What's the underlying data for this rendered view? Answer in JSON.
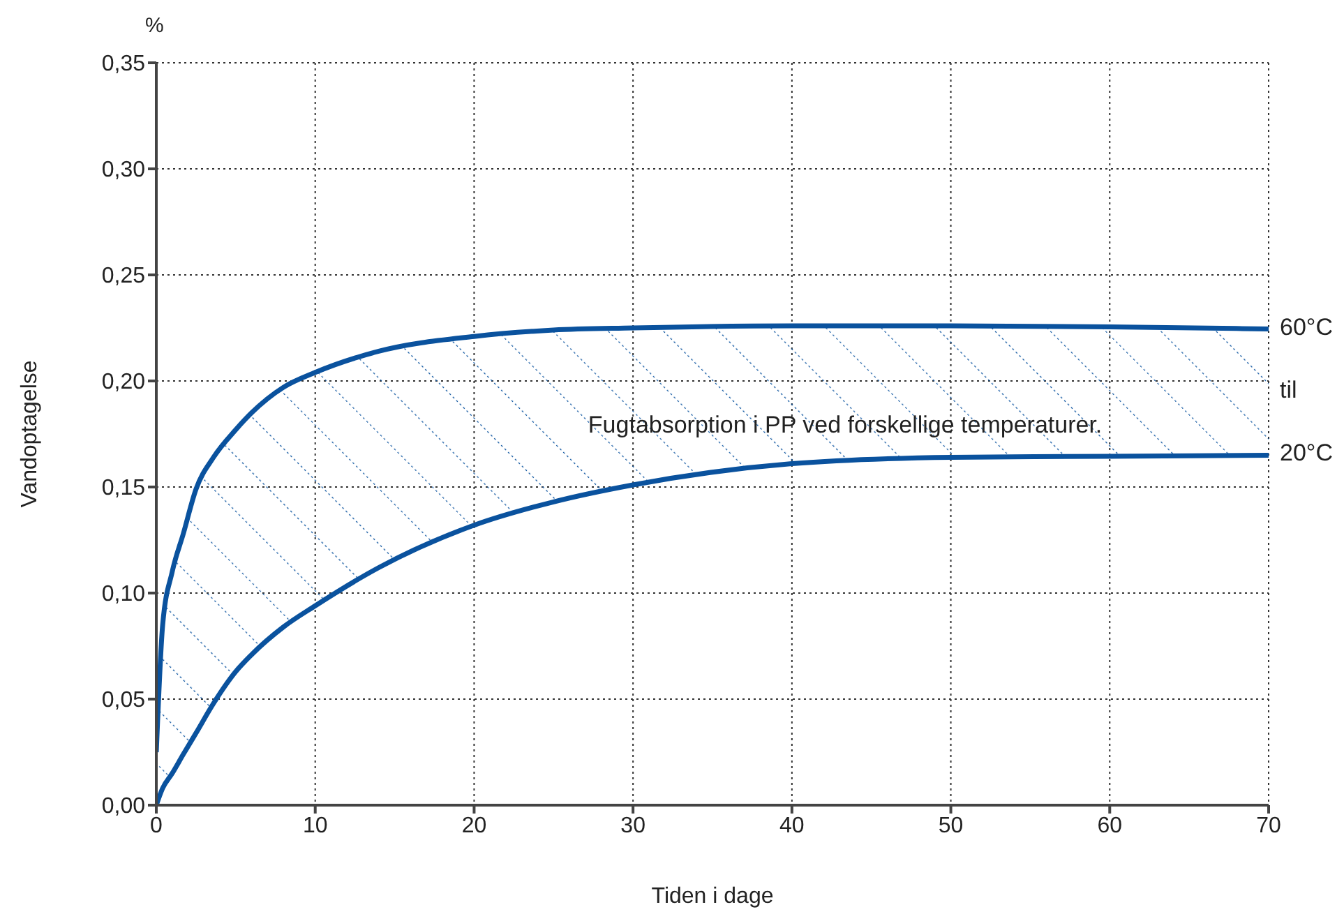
{
  "chart_data": {
    "type": "line",
    "xlabel": "Tiden i dage",
    "ylabel": "Vandoptagelse",
    "annotations": [
      "%",
      "Fugtabsorption i PP ved forskellige temperaturer.",
      "til"
    ],
    "x": [
      0,
      0.4,
      1,
      1.7,
      2.5,
      3.6,
      5,
      6,
      8,
      10,
      14,
      20,
      25,
      30,
      40,
      50,
      60,
      70
    ],
    "series": [
      {
        "name": "60°C",
        "color": "#0a529e",
        "values": [
          0.025,
          0.085,
          0.11,
          0.128,
          0.149,
          0.164,
          0.177,
          0.185,
          0.197,
          0.204,
          0.214,
          0.221,
          0.224,
          0.225,
          0.226,
          0.226,
          0.2255,
          0.2245
        ],
        "lower": [
          0,
          0.008,
          0.015,
          0.024,
          0.034,
          0.048,
          0.063,
          0.071,
          0.084,
          0.094,
          0.112,
          0.132,
          0.143,
          0.151,
          0.161,
          0.164,
          0.1645,
          0.165
        ],
        "upper": [
          0.025,
          0.085,
          0.11,
          0.128,
          0.149,
          0.164,
          0.177,
          0.185,
          0.197,
          0.204,
          0.214,
          0.221,
          0.224,
          0.225,
          0.226,
          0.226,
          0.2255,
          0.2245
        ]
      },
      {
        "name": "20°C",
        "color": "#0a529e",
        "values": [
          0,
          0.008,
          0.015,
          0.024,
          0.034,
          0.048,
          0.063,
          0.071,
          0.084,
          0.094,
          0.112,
          0.132,
          0.143,
          0.151,
          0.161,
          0.164,
          0.1645,
          0.165
        ]
      }
    ],
    "xlim": [
      0,
      70
    ],
    "xticks": [
      0,
      10,
      20,
      30,
      40,
      50,
      60,
      70
    ],
    "ylim": [
      0,
      0.35
    ],
    "yticks": [
      {
        "value": 0,
        "label": "0,00"
      },
      {
        "value": 0.05,
        "label": "0,05"
      },
      {
        "value": 0.1,
        "label": "0,10"
      },
      {
        "value": 0.15,
        "label": "0,15"
      },
      {
        "value": 0.2,
        "label": "0,20"
      },
      {
        "value": 0.25,
        "label": "0,25"
      },
      {
        "value": 0.3,
        "label": "0,30"
      },
      {
        "value": 0.35,
        "label": "0,35"
      }
    ],
    "grid": true,
    "marker": "none",
    "line_style": "solid"
  }
}
